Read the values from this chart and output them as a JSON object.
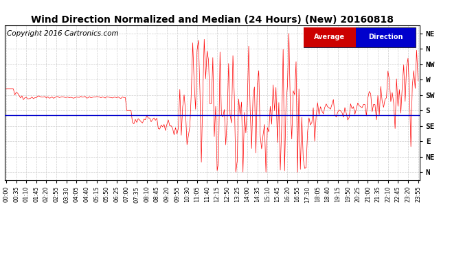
{
  "title": "Wind Direction Normalized and Median (24 Hours) (New) 20160818",
  "copyright": "Copyright 2016 Cartronics.com",
  "ytick_labels": [
    "NE",
    "N",
    "NW",
    "W",
    "SW",
    "S",
    "SE",
    "E",
    "NE",
    "N"
  ],
  "ytick_values": [
    9,
    8,
    7,
    6,
    5,
    4,
    3,
    2,
    1,
    0
  ],
  "ylim": [
    -0.5,
    9.5
  ],
  "average_line_y": 3.7,
  "bg_color": "#ffffff",
  "grid_color": "#cccccc",
  "red_line_color": "#ff0000",
  "blue_line_color": "#0000cc",
  "legend_bg_blue": "#0000cc",
  "legend_bg_red": "#cc0000",
  "title_fontsize": 10,
  "copyright_fontsize": 7.5,
  "tick_interval_min": 35,
  "n_points": 288
}
